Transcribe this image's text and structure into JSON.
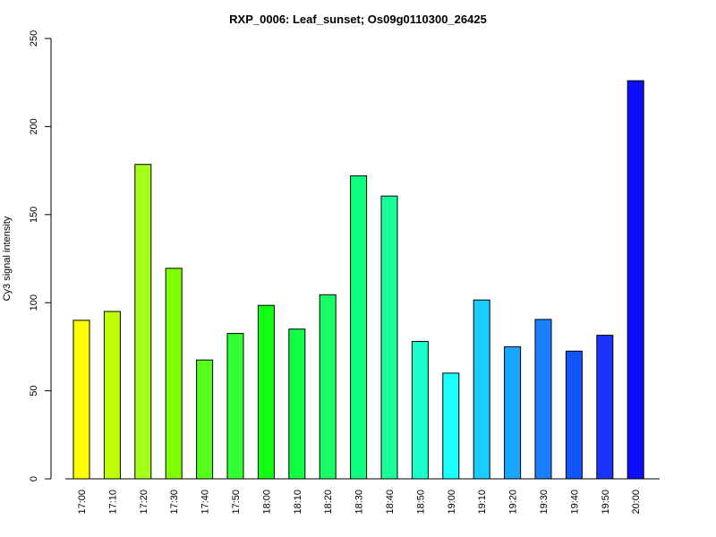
{
  "chart_data": {
    "type": "bar",
    "title": "RXP_0006: Leaf_sunset; Os09g0110300_26425",
    "xlabel": "",
    "ylabel": "Cy3 signal intensity",
    "ylim": [
      0,
      250
    ],
    "yticks": [
      0,
      50,
      100,
      150,
      200,
      250
    ],
    "grid": false,
    "categories": [
      "17:00",
      "17:10",
      "17:20",
      "17:30",
      "17:40",
      "17:50",
      "18:00",
      "18:10",
      "18:20",
      "18:30",
      "18:40",
      "18:50",
      "19:00",
      "19:10",
      "19:20",
      "19:30",
      "19:40",
      "19:50",
      "20:00"
    ],
    "values": [
      90,
      95,
      178.5,
      119.5,
      67.5,
      82.5,
      98.5,
      85,
      104.5,
      172,
      160.5,
      78,
      60,
      101.5,
      75,
      90.5,
      72.5,
      81.5,
      226
    ],
    "colors": [
      "#FFFF00",
      "#BFFF00",
      "#A6FF1A",
      "#80FF00",
      "#55FF1A",
      "#33FF33",
      "#11FF11",
      "#11FF44",
      "#1AFF66",
      "#0DFF80",
      "#1AFF99",
      "#1AFFCC",
      "#1AFFFF",
      "#1ACCFF",
      "#1AA6FF",
      "#1A80FF",
      "#1155FF",
      "#1A33FF",
      "#0D0DFF"
    ]
  }
}
